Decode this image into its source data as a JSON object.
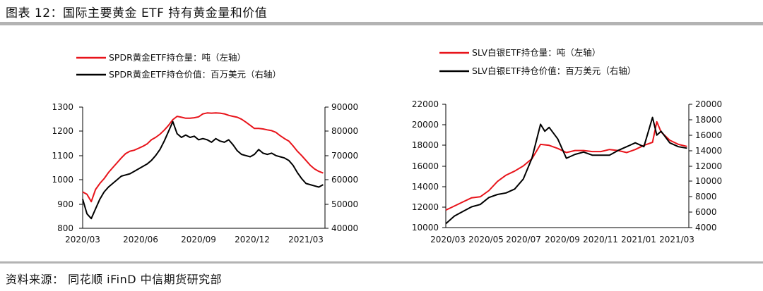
{
  "header": {
    "title": "图表 12：国际主要黄金 ETF 持有黄金量和价值"
  },
  "footer": {
    "source": "资料来源：  同花顺 iFinD  中信期货研究部"
  },
  "colors": {
    "red": "#e8141b",
    "black": "#000000",
    "rule": "#b3b3b3"
  },
  "chart_data": [
    {
      "type": "line",
      "x_ticks": [
        "2020/03",
        "2020/06",
        "2020/09",
        "2020/12",
        "2021/03"
      ],
      "yleft": {
        "ticks": [
          "800",
          "900",
          "1000",
          "1100",
          "1200",
          "1300"
        ],
        "range": [
          800,
          1300
        ]
      },
      "yright": {
        "ticks": [
          "40000",
          "50000",
          "60000",
          "70000",
          "80000",
          "90000"
        ],
        "range": [
          40000,
          90000
        ]
      },
      "series": [
        {
          "name": "SPDR黄金ETF持仓量：吨（左轴）",
          "axis": "left",
          "color": "#e8141b",
          "x": [
            "2020/03/01",
            "2020/03/08",
            "2020/03/15",
            "2020/03/22",
            "2020/03/29",
            "2020/04/05",
            "2020/04/12",
            "2020/04/19",
            "2020/04/26",
            "2020/05/03",
            "2020/05/10",
            "2020/05/17",
            "2020/05/24",
            "2020/05/31",
            "2020/06/07",
            "2020/06/14",
            "2020/06/21",
            "2020/06/28",
            "2020/07/05",
            "2020/07/12",
            "2020/07/19",
            "2020/07/26",
            "2020/08/02",
            "2020/08/09",
            "2020/08/16",
            "2020/08/23",
            "2020/08/30",
            "2020/09/06",
            "2020/09/13",
            "2020/09/20",
            "2020/09/27",
            "2020/10/04",
            "2020/10/11",
            "2020/10/18",
            "2020/10/25",
            "2020/11/01",
            "2020/11/08",
            "2020/11/15",
            "2020/11/22",
            "2020/11/29",
            "2020/12/06",
            "2020/12/13",
            "2020/12/20",
            "2020/12/27",
            "2021/01/03",
            "2021/01/10",
            "2021/01/17",
            "2021/01/24",
            "2021/01/31",
            "2021/02/07",
            "2021/02/14",
            "2021/02/21",
            "2021/02/28",
            "2021/03/07",
            "2021/03/14",
            "2021/03/21",
            "2021/03/28"
          ],
          "values": [
            950,
            940,
            910,
            960,
            985,
            1005,
            1030,
            1050,
            1070,
            1090,
            1108,
            1118,
            1122,
            1130,
            1138,
            1148,
            1165,
            1175,
            1188,
            1205,
            1225,
            1248,
            1262,
            1258,
            1254,
            1254,
            1256,
            1260,
            1272,
            1276,
            1275,
            1276,
            1275,
            1272,
            1266,
            1262,
            1258,
            1250,
            1238,
            1225,
            1212,
            1212,
            1210,
            1206,
            1203,
            1196,
            1182,
            1170,
            1160,
            1140,
            1118,
            1100,
            1080,
            1060,
            1045,
            1035,
            1028
          ]
        },
        {
          "name": "SPDR黄金ETF持仓价值：百万美元（右轴）",
          "axis": "right",
          "color": "#000000",
          "x": [
            "2020/03/01",
            "2020/03/08",
            "2020/03/15",
            "2020/03/22",
            "2020/03/29",
            "2020/04/05",
            "2020/04/12",
            "2020/04/19",
            "2020/04/26",
            "2020/05/03",
            "2020/05/10",
            "2020/05/17",
            "2020/05/24",
            "2020/05/31",
            "2020/06/07",
            "2020/06/14",
            "2020/06/21",
            "2020/06/28",
            "2020/07/05",
            "2020/07/12",
            "2020/07/19",
            "2020/07/26",
            "2020/08/02",
            "2020/08/09",
            "2020/08/16",
            "2020/08/23",
            "2020/08/30",
            "2020/09/06",
            "2020/09/13",
            "2020/09/20",
            "2020/09/27",
            "2020/10/04",
            "2020/10/11",
            "2020/10/18",
            "2020/10/25",
            "2020/11/01",
            "2020/11/08",
            "2020/11/15",
            "2020/11/22",
            "2020/11/29",
            "2020/12/06",
            "2020/12/13",
            "2020/12/20",
            "2020/12/27",
            "2021/01/03",
            "2021/01/10",
            "2021/01/17",
            "2021/01/24",
            "2021/01/31",
            "2021/02/07",
            "2021/02/14",
            "2021/02/21",
            "2021/02/28",
            "2021/03/07",
            "2021/03/14",
            "2021/03/21",
            "2021/03/28"
          ],
          "values": [
            52000,
            46000,
            44000,
            48000,
            52000,
            55000,
            57000,
            58500,
            60000,
            61500,
            62000,
            62500,
            63500,
            64500,
            65500,
            66500,
            68000,
            70000,
            72500,
            76000,
            80000,
            84000,
            79000,
            77500,
            78500,
            77500,
            78000,
            76500,
            77000,
            76500,
            75500,
            77000,
            76000,
            75500,
            76500,
            74500,
            72000,
            70500,
            70000,
            69500,
            70500,
            72500,
            71000,
            70500,
            71000,
            70000,
            69500,
            69000,
            68000,
            66000,
            63000,
            60500,
            58500,
            58000,
            57500,
            57000,
            58000
          ]
        }
      ]
    },
    {
      "type": "line",
      "x_ticks": [
        "2020/03",
        "2020/05",
        "2020/07",
        "2020/09",
        "2020/11",
        "2021/01",
        "2021/03"
      ],
      "yleft": {
        "ticks": [
          "10000",
          "12000",
          "14000",
          "16000",
          "18000",
          "20000",
          "22000"
        ],
        "range": [
          10000,
          22000
        ]
      },
      "yright": {
        "ticks": [
          "4000",
          "6000",
          "8000",
          "10000",
          "12000",
          "14000",
          "16000",
          "18000",
          "20000"
        ],
        "range": [
          4000,
          20000
        ]
      },
      "series": [
        {
          "name": "SLV白银ETF持仓量：吨（左轴）",
          "axis": "left",
          "color": "#e8141b",
          "x": [
            "2020/03/01",
            "2020/03/15",
            "2020/03/29",
            "2020/04/12",
            "2020/04/26",
            "2020/05/10",
            "2020/05/24",
            "2020/06/07",
            "2020/06/21",
            "2020/07/05",
            "2020/07/19",
            "2020/08/02",
            "2020/08/16",
            "2020/08/30",
            "2020/09/13",
            "2020/09/27",
            "2020/10/11",
            "2020/10/25",
            "2020/11/08",
            "2020/11/22",
            "2020/12/06",
            "2020/12/20",
            "2021/01/03",
            "2021/01/17",
            "2021/01/31",
            "2021/02/07",
            "2021/02/14",
            "2021/02/28",
            "2021/03/14",
            "2021/03/28"
          ],
          "values": [
            11700,
            12100,
            12500,
            12900,
            13000,
            13600,
            14500,
            15100,
            15500,
            16000,
            16700,
            18100,
            18000,
            17700,
            17300,
            17500,
            17500,
            17400,
            17400,
            17600,
            17500,
            17300,
            17600,
            18000,
            18300,
            20300,
            19300,
            18500,
            18100,
            17900
          ]
        },
        {
          "name": "SLV白银ETF持仓价值：百万美元（右轴）",
          "axis": "right",
          "color": "#000000",
          "x": [
            "2020/03/01",
            "2020/03/15",
            "2020/03/29",
            "2020/04/12",
            "2020/04/26",
            "2020/05/10",
            "2020/05/24",
            "2020/06/07",
            "2020/06/21",
            "2020/07/05",
            "2020/07/19",
            "2020/08/02",
            "2020/08/09",
            "2020/08/16",
            "2020/08/30",
            "2020/09/13",
            "2020/09/27",
            "2020/10/11",
            "2020/10/25",
            "2020/11/08",
            "2020/11/22",
            "2020/12/06",
            "2020/12/20",
            "2021/01/03",
            "2021/01/17",
            "2021/01/31",
            "2021/02/07",
            "2021/02/14",
            "2021/02/28",
            "2021/03/14",
            "2021/03/28"
          ],
          "values": [
            4500,
            5500,
            6100,
            6700,
            7000,
            7900,
            8300,
            8500,
            9000,
            10300,
            13000,
            17400,
            16500,
            17000,
            15500,
            13000,
            13500,
            13800,
            13400,
            13400,
            13400,
            14000,
            14500,
            15000,
            14500,
            18300,
            16000,
            16500,
            15000,
            14500,
            14300
          ]
        }
      ]
    }
  ]
}
